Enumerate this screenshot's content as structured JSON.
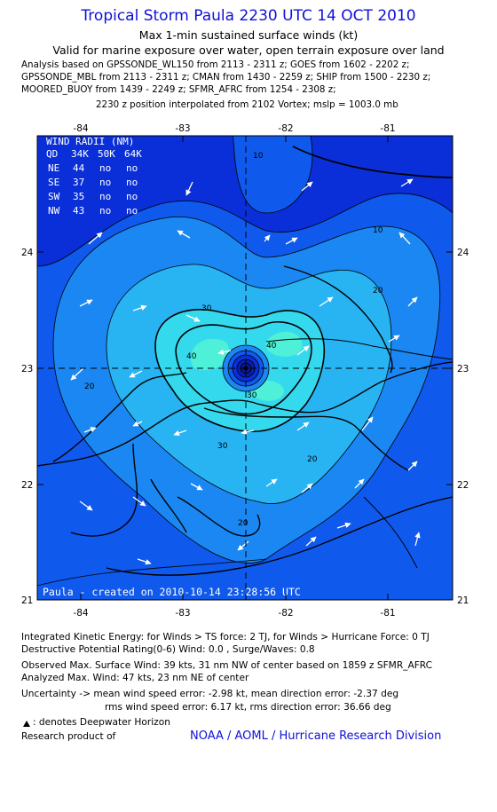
{
  "header": {
    "title": "Tropical Storm Paula 2230 UTC 14 OCT 2010",
    "subtitle": "Max 1-min sustained surface winds (kt)",
    "validity": "Valid for marine exposure over water, open terrain exposure over land",
    "analysis_lines": [
      "Analysis based on GPSSONDE_WL150 from 2113 - 2311 z; GOES from 1602 - 2202 z;",
      "GPSSONDE_MBL from 2113 - 2311 z; CMAN from 1430 - 2259 z; SHIP from 1500 - 2230 z;",
      "MOORED_BUOY from 1439 - 2249 z; SFMR_AFRC from 1254 - 2308 z;"
    ],
    "position_note": "2230 z position interpolated from 2102 Vortex; mslp = 1003.0 mb"
  },
  "map": {
    "lon_ticks": [
      "-84",
      "-83",
      "-82",
      "-81"
    ],
    "lat_ticks": [
      "24",
      "23",
      "22",
      "21"
    ],
    "storm_center": {
      "lon": -82.4,
      "lat": 23.0
    },
    "contour_labels": [
      "10",
      "10",
      "20",
      "20",
      "20",
      "30",
      "30",
      "30",
      "40",
      "40",
      "20"
    ],
    "colors": {
      "outer": "#0a2fd8",
      "mid1": "#0f59ec",
      "mid2": "#1b87f2",
      "mid3": "#28b4f2",
      "inner": "#35d9ee",
      "core": "#4ef0d8",
      "land": "#000000",
      "arrow": "#ffffff"
    },
    "watermark": "Paula - created on 2010-10-14 23:28:56 UTC"
  },
  "wind_radii": {
    "title": "WIND RADII (NM)",
    "columns": [
      "QD",
      "34K",
      "50K",
      "64K"
    ],
    "rows": [
      {
        "qd": "NE",
        "k34": "44",
        "k50": "no",
        "k64": "no"
      },
      {
        "qd": "SE",
        "k34": "37",
        "k50": "no",
        "k64": "no"
      },
      {
        "qd": "SW",
        "k34": "35",
        "k50": "no",
        "k64": "no"
      },
      {
        "qd": "NW",
        "k34": "43",
        "k50": "no",
        "k64": "no"
      }
    ]
  },
  "footer": {
    "ike": "Integrated Kinetic Energy:  for Winds > TS force: 2 TJ,  for Winds > Hurricane Force: 0 TJ",
    "rating": "Destructive Potential Rating(0-6)   Wind: 0.0 , Surge/Waves: 0.8",
    "observed": "Observed Max. Surface Wind: 39 kts, 31 nm NW of center based on 1859 z SFMR_AFRC",
    "analyzed": "Analyzed Max. Wind: 47 kts, 23 nm NE of center",
    "uncertainty1": "Uncertainty -> mean wind speed error:  -2.98 kt,   mean direction error:  -2.37 deg",
    "uncertainty2": "rms wind speed error: 6.17 kt,   rms direction error: 36.66 deg",
    "deepwater": ": denotes Deepwater Horizon",
    "research": "Research product of",
    "org": "NOAA / AOML / Hurricane Research Division"
  }
}
